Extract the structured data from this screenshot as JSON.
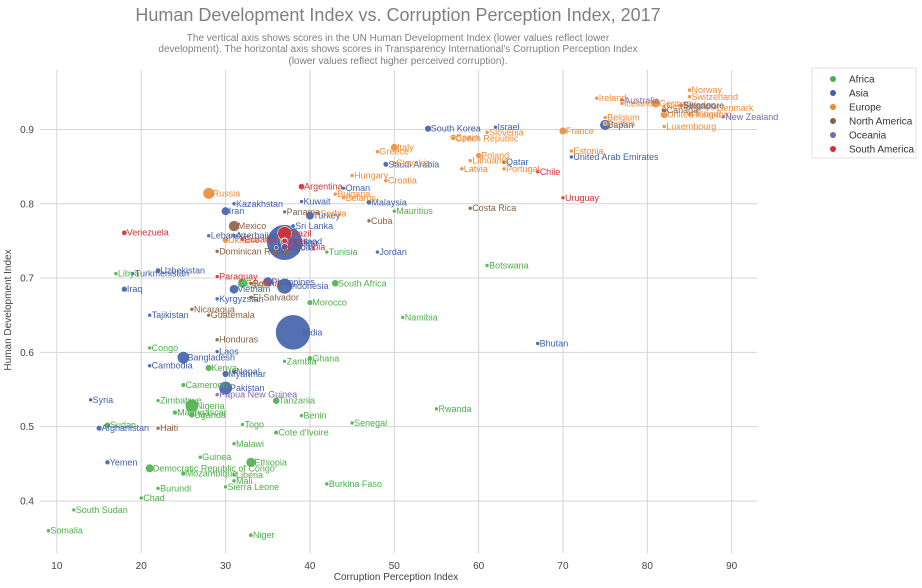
{
  "chart_data": {
    "type": "scatter",
    "title": "Human Development Index vs. Corruption Perception Index, 2017",
    "subtitle": [
      "The vertical axis shows scores in the UN Human Development Index (lower values reflect lower",
      "development). The horizontal axis shows scores in Transparency International's Corruption Perception Index",
      "(lower values reflect higher perceived corruption)."
    ],
    "xlabel": "Corruption Perception Index",
    "ylabel": "Human Development Index",
    "xlim": [
      8,
      93
    ],
    "ylim": [
      0.33,
      0.98
    ],
    "xticks": [
      10,
      20,
      30,
      40,
      50,
      60,
      70,
      80,
      90
    ],
    "yticks": [
      0.4,
      0.5,
      0.6,
      0.7,
      0.8,
      0.9
    ],
    "grid": true,
    "legend_position": "top-right",
    "series": [
      {
        "name": "Africa",
        "color": "#4daf4a"
      },
      {
        "name": "Asia",
        "color": "#4060aa"
      },
      {
        "name": "Europe",
        "color": "#ef8a33"
      },
      {
        "name": "North America",
        "color": "#8c6140"
      },
      {
        "name": "Oceania",
        "color": "#7a67b0"
      },
      {
        "name": "South America",
        "color": "#d62f2f"
      }
    ],
    "points": [
      {
        "label": "China",
        "region": "Asia",
        "x": 37,
        "y": 0.748,
        "size": 1386
      },
      {
        "label": "India",
        "region": "Asia",
        "x": 38,
        "y": 0.627,
        "size": 1339
      },
      {
        "label": "Indonesia",
        "region": "Asia",
        "x": 37,
        "y": 0.689,
        "size": 264
      },
      {
        "label": "Pakistan",
        "region": "Asia",
        "x": 30,
        "y": 0.552,
        "size": 197
      },
      {
        "label": "Brazil",
        "region": "South America",
        "x": 37,
        "y": 0.76,
        "size": 209
      },
      {
        "label": "Nigeria",
        "region": "Africa",
        "x": 26,
        "y": 0.528,
        "size": 191
      },
      {
        "label": "Bangladesh",
        "region": "Asia",
        "x": 25,
        "y": 0.593,
        "size": 165
      },
      {
        "label": "Russia",
        "region": "Europe",
        "x": 28,
        "y": 0.814,
        "size": 144
      },
      {
        "label": "Mexico",
        "region": "North America",
        "x": 31,
        "y": 0.77,
        "size": 129
      },
      {
        "label": "Japan",
        "region": "Asia",
        "x": 75,
        "y": 0.906,
        "size": 127
      },
      {
        "label": "Ethiopia",
        "region": "Africa",
        "x": 33,
        "y": 0.452,
        "size": 105
      },
      {
        "label": "Philippines",
        "region": "Asia",
        "x": 35,
        "y": 0.695,
        "size": 105
      },
      {
        "label": "Egypt",
        "region": "Africa",
        "x": 32,
        "y": 0.693,
        "size": 97
      },
      {
        "label": "Vietnam",
        "region": "Asia",
        "x": 31,
        "y": 0.685,
        "size": 95
      },
      {
        "label": "Germany",
        "region": "Europe",
        "x": 81,
        "y": 0.935,
        "size": 82
      },
      {
        "label": "Democratic Republic of Congo",
        "region": "Africa",
        "x": 21,
        "y": 0.444,
        "size": 81
      },
      {
        "label": "Iran",
        "region": "Asia",
        "x": 30,
        "y": 0.79,
        "size": 81
      },
      {
        "label": "Turkey",
        "region": "Asia",
        "x": 40,
        "y": 0.784,
        "size": 80
      },
      {
        "label": "Thailand",
        "region": "Asia",
        "x": 37,
        "y": 0.749,
        "size": 69
      },
      {
        "label": "United Kingdom",
        "region": "Europe",
        "x": 82,
        "y": 0.92,
        "size": 66
      },
      {
        "label": "France",
        "region": "Europe",
        "x": 70,
        "y": 0.898,
        "size": 65
      },
      {
        "label": "Italy",
        "region": "Europe",
        "x": 50,
        "y": 0.876,
        "size": 60
      },
      {
        "label": "Tanzania",
        "region": "Africa",
        "x": 36,
        "y": 0.535,
        "size": 57
      },
      {
        "label": "South Africa",
        "region": "Africa",
        "x": 43,
        "y": 0.693,
        "size": 57
      },
      {
        "label": "Myanmar",
        "region": "Asia",
        "x": 30,
        "y": 0.571,
        "size": 53
      },
      {
        "label": "Kenya",
        "region": "Africa",
        "x": 28,
        "y": 0.579,
        "size": 50
      },
      {
        "label": "South Korea",
        "region": "Asia",
        "x": 54,
        "y": 0.901,
        "size": 51
      },
      {
        "label": "Colombia",
        "region": "South America",
        "x": 37,
        "y": 0.742,
        "size": 49
      },
      {
        "label": "Spain",
        "region": "Europe",
        "x": 57,
        "y": 0.889,
        "size": 47
      },
      {
        "label": "Argentina",
        "region": "South America",
        "x": 39,
        "y": 0.823,
        "size": 44
      },
      {
        "label": "Uganda",
        "region": "Africa",
        "x": 26,
        "y": 0.516,
        "size": 43
      },
      {
        "label": "Ukraine",
        "region": "Europe",
        "x": 30,
        "y": 0.751,
        "size": 44
      },
      {
        "label": "Sudan",
        "region": "Africa",
        "x": 16,
        "y": 0.502,
        "size": 41
      },
      {
        "label": "Iraq",
        "region": "Asia",
        "x": 18,
        "y": 0.685,
        "size": 38
      },
      {
        "label": "Afghanistan",
        "region": "Asia",
        "x": 15,
        "y": 0.498,
        "size": 36
      },
      {
        "label": "Poland",
        "region": "Europe",
        "x": 60,
        "y": 0.865,
        "size": 38
      },
      {
        "label": "Canada",
        "region": "North America",
        "x": 82,
        "y": 0.926,
        "size": 37
      },
      {
        "label": "Morocco",
        "region": "Africa",
        "x": 40,
        "y": 0.667,
        "size": 36
      },
      {
        "label": "Saudi Arabia",
        "region": "Asia",
        "x": 49,
        "y": 0.853,
        "size": 33
      },
      {
        "label": "Uzbekistan",
        "region": "Asia",
        "x": 22,
        "y": 0.71,
        "size": 32
      },
      {
        "label": "Malaysia",
        "region": "Asia",
        "x": 47,
        "y": 0.802,
        "size": 32
      },
      {
        "label": "Peru",
        "region": "South America",
        "x": 37,
        "y": 0.75,
        "size": 32
      },
      {
        "label": "Venezuela",
        "region": "South America",
        "x": 18,
        "y": 0.761,
        "size": 32
      },
      {
        "label": "Nepal",
        "region": "Asia",
        "x": 31,
        "y": 0.574,
        "size": 29
      },
      {
        "label": "Ghana",
        "region": "Africa",
        "x": 40,
        "y": 0.592,
        "size": 29
      },
      {
        "label": "Yemen",
        "region": "Asia",
        "x": 16,
        "y": 0.452,
        "size": 28
      },
      {
        "label": "Mozambique",
        "region": "Africa",
        "x": 25,
        "y": 0.437,
        "size": 29
      },
      {
        "label": "Australia",
        "region": "Oceania",
        "x": 77,
        "y": 0.939,
        "size": 25
      },
      {
        "label": "Madagascar",
        "region": "Africa",
        "x": 24,
        "y": 0.519,
        "size": 26
      },
      {
        "label": "Cameroon",
        "region": "Africa",
        "x": 25,
        "y": 0.556,
        "size": 24
      },
      {
        "label": "Cote d'Ivoire",
        "region": "Africa",
        "x": 36,
        "y": 0.492,
        "size": 24
      },
      {
        "label": "Niger",
        "region": "Africa",
        "x": 33,
        "y": 0.354,
        "size": 21
      },
      {
        "label": "Sri Lanka",
        "region": "Asia",
        "x": 38,
        "y": 0.77,
        "size": 21
      },
      {
        "label": "Burkina Faso",
        "region": "Africa",
        "x": 42,
        "y": 0.423,
        "size": 19
      },
      {
        "label": "Mali",
        "region": "Africa",
        "x": 31,
        "y": 0.427,
        "size": 18
      },
      {
        "label": "Malawi",
        "region": "Africa",
        "x": 31,
        "y": 0.477,
        "size": 18
      },
      {
        "label": "Chile",
        "region": "South America",
        "x": 67,
        "y": 0.843,
        "size": 18
      },
      {
        "label": "Kazakhstan",
        "region": "Asia",
        "x": 31,
        "y": 0.8,
        "size": 18
      },
      {
        "label": "Zambia",
        "region": "Africa",
        "x": 37,
        "y": 0.588,
        "size": 17
      },
      {
        "label": "Guatemala",
        "region": "North America",
        "x": 28,
        "y": 0.65,
        "size": 17
      },
      {
        "label": "Ecuador",
        "region": "South America",
        "x": 32,
        "y": 0.752,
        "size": 17
      },
      {
        "label": "Netherlands",
        "region": "Europe",
        "x": 82,
        "y": 0.931,
        "size": 17
      },
      {
        "label": "Syria",
        "region": "Asia",
        "x": 14,
        "y": 0.536,
        "size": 18
      },
      {
        "label": "Cambodia",
        "region": "Asia",
        "x": 21,
        "y": 0.582,
        "size": 16
      },
      {
        "label": "Senegal",
        "region": "Africa",
        "x": 45,
        "y": 0.505,
        "size": 16
      },
      {
        "label": "Chad",
        "region": "Africa",
        "x": 20,
        "y": 0.404,
        "size": 15
      },
      {
        "label": "Somalia",
        "region": "Africa",
        "x": 9,
        "y": 0.36,
        "size": 15
      },
      {
        "label": "Zimbabwe",
        "region": "Africa",
        "x": 22,
        "y": 0.535,
        "size": 16
      },
      {
        "label": "Guinea",
        "region": "Africa",
        "x": 27,
        "y": 0.459,
        "size": 13
      },
      {
        "label": "Rwanda",
        "region": "Africa",
        "x": 55,
        "y": 0.524,
        "size": 12
      },
      {
        "label": "Benin",
        "region": "Africa",
        "x": 39,
        "y": 0.515,
        "size": 11
      },
      {
        "label": "Burundi",
        "region": "Africa",
        "x": 22,
        "y": 0.417,
        "size": 11
      },
      {
        "label": "Tunisia",
        "region": "Africa",
        "x": 42,
        "y": 0.735,
        "size": 11
      },
      {
        "label": "Bolivia",
        "region": "South America",
        "x": 33,
        "y": 0.693,
        "size": 11
      },
      {
        "label": "Belgium",
        "region": "Europe",
        "x": 75,
        "y": 0.916,
        "size": 11
      },
      {
        "label": "Haiti",
        "region": "North America",
        "x": 22,
        "y": 0.498,
        "size": 11
      },
      {
        "label": "Cuba",
        "region": "North America",
        "x": 47,
        "y": 0.777,
        "size": 11
      },
      {
        "label": "South Sudan",
        "region": "Africa",
        "x": 12,
        "y": 0.388,
        "size": 12
      },
      {
        "label": "Dominican Republic",
        "region": "North America",
        "x": 29,
        "y": 0.736,
        "size": 11
      },
      {
        "label": "Czech Republic",
        "region": "Europe",
        "x": 57,
        "y": 0.888,
        "size": 11
      },
      {
        "label": "Greece",
        "region": "Europe",
        "x": 48,
        "y": 0.87,
        "size": 11
      },
      {
        "label": "Jordan",
        "region": "Asia",
        "x": 48,
        "y": 0.735,
        "size": 10
      },
      {
        "label": "Portugal",
        "region": "Europe",
        "x": 63,
        "y": 0.847,
        "size": 10
      },
      {
        "label": "Azerbaijan",
        "region": "Asia",
        "x": 31,
        "y": 0.757,
        "size": 10
      },
      {
        "label": "Sweden",
        "region": "Europe",
        "x": 84,
        "y": 0.933,
        "size": 10
      },
      {
        "label": "Honduras",
        "region": "North America",
        "x": 29,
        "y": 0.617,
        "size": 9
      },
      {
        "label": "United Arab Emirates",
        "region": "Asia",
        "x": 71,
        "y": 0.863,
        "size": 9
      },
      {
        "label": "Hungary",
        "region": "Europe",
        "x": 45,
        "y": 0.838,
        "size": 10
      },
      {
        "label": "Tajikistan",
        "region": "Asia",
        "x": 21,
        "y": 0.65,
        "size": 9
      },
      {
        "label": "Belarus",
        "region": "Europe",
        "x": 44,
        "y": 0.808,
        "size": 9
      },
      {
        "label": "Austria",
        "region": "Europe",
        "x": 75,
        "y": 0.908,
        "size": 9
      },
      {
        "label": "Papua New Guinea",
        "region": "Oceania",
        "x": 29,
        "y": 0.543,
        "size": 8
      },
      {
        "label": "Serbia",
        "region": "Europe",
        "x": 41,
        "y": 0.787,
        "size": 7
      },
      {
        "label": "Israel",
        "region": "Asia",
        "x": 62,
        "y": 0.903,
        "size": 8
      },
      {
        "label": "Switzerland",
        "region": "Europe",
        "x": 85,
        "y": 0.944,
        "size": 8
      },
      {
        "label": "Togo",
        "region": "Africa",
        "x": 32,
        "y": 0.503,
        "size": 8
      },
      {
        "label": "Sierra Leone",
        "region": "Africa",
        "x": 30,
        "y": 0.419,
        "size": 7
      },
      {
        "label": "Laos",
        "region": "Asia",
        "x": 29,
        "y": 0.601,
        "size": 7
      },
      {
        "label": "Paraguay",
        "region": "South America",
        "x": 29,
        "y": 0.702,
        "size": 7
      },
      {
        "label": "Bulgaria",
        "region": "Europe",
        "x": 43,
        "y": 0.813,
        "size": 7
      },
      {
        "label": "Libya",
        "region": "Africa",
        "x": 17,
        "y": 0.706,
        "size": 6
      },
      {
        "label": "Lebanon",
        "region": "Asia",
        "x": 28,
        "y": 0.757,
        "size": 6
      },
      {
        "label": "Nicaragua",
        "region": "North America",
        "x": 26,
        "y": 0.658,
        "size": 6
      },
      {
        "label": "Kyrgyzstan",
        "region": "Asia",
        "x": 29,
        "y": 0.672,
        "size": 6
      },
      {
        "label": "El Salvador",
        "region": "North America",
        "x": 33,
        "y": 0.674,
        "size": 6
      },
      {
        "label": "Turkmenistan",
        "region": "Asia",
        "x": 19,
        "y": 0.706,
        "size": 6
      },
      {
        "label": "Singapore",
        "region": "Asia",
        "x": 84,
        "y": 0.932,
        "size": 6
      },
      {
        "label": "Denmark",
        "region": "Europe",
        "x": 88,
        "y": 0.929,
        "size": 6
      },
      {
        "label": "Finland",
        "region": "Europe",
        "x": 85,
        "y": 0.92,
        "size": 6
      },
      {
        "label": "Slovakia",
        "region": "Europe",
        "x": 50,
        "y": 0.855,
        "size": 5
      },
      {
        "label": "Norway",
        "region": "Europe",
        "x": 85,
        "y": 0.953,
        "size": 5
      },
      {
        "label": "Congo",
        "region": "Africa",
        "x": 21,
        "y": 0.606,
        "size": 5
      },
      {
        "label": "Costa Rica",
        "region": "North America",
        "x": 59,
        "y": 0.794,
        "size": 5
      },
      {
        "label": "New Zealand",
        "region": "Oceania",
        "x": 89,
        "y": 0.917,
        "size": 5
      },
      {
        "label": "Ireland",
        "region": "Europe",
        "x": 74,
        "y": 0.942,
        "size": 5
      },
      {
        "label": "Oman",
        "region": "Asia",
        "x": 44,
        "y": 0.821,
        "size": 5
      },
      {
        "label": "Liberia",
        "region": "Africa",
        "x": 31,
        "y": 0.435,
        "size": 5
      },
      {
        "label": "Panama",
        "region": "North America",
        "x": 37,
        "y": 0.789,
        "size": 4
      },
      {
        "label": "Kuwait",
        "region": "Asia",
        "x": 39,
        "y": 0.803,
        "size": 4
      },
      {
        "label": "Croatia",
        "region": "Europe",
        "x": 49,
        "y": 0.831,
        "size": 4
      },
      {
        "label": "Mongolia",
        "region": "Asia",
        "x": 36,
        "y": 0.741,
        "size": 3
      },
      {
        "label": "Uruguay",
        "region": "South America",
        "x": 70,
        "y": 0.808,
        "size": 3
      },
      {
        "label": "Qatar",
        "region": "Asia",
        "x": 63,
        "y": 0.856,
        "size": 3
      },
      {
        "label": "Namibia",
        "region": "Africa",
        "x": 51,
        "y": 0.647,
        "size": 3
      },
      {
        "label": "Botswana",
        "region": "Africa",
        "x": 61,
        "y": 0.717,
        "size": 2
      },
      {
        "label": "Lithuania",
        "region": "Europe",
        "x": 59,
        "y": 0.858,
        "size": 3
      },
      {
        "label": "Slovenia",
        "region": "Europe",
        "x": 61,
        "y": 0.896,
        "size": 2
      },
      {
        "label": "Latvia",
        "region": "Europe",
        "x": 58,
        "y": 0.847,
        "size": 2
      },
      {
        "label": "Estonia",
        "region": "Europe",
        "x": 71,
        "y": 0.871,
        "size": 1
      },
      {
        "label": "Mauritius",
        "region": "Africa",
        "x": 50,
        "y": 0.79,
        "size": 1
      },
      {
        "label": "Bhutan",
        "region": "Asia",
        "x": 67,
        "y": 0.612,
        "size": 1
      },
      {
        "label": "Luxembourg",
        "region": "Europe",
        "x": 82,
        "y": 0.904,
        "size": 1
      },
      {
        "label": "Iceland",
        "region": "Europe",
        "x": 77,
        "y": 0.935,
        "size": 1
      }
    ]
  }
}
